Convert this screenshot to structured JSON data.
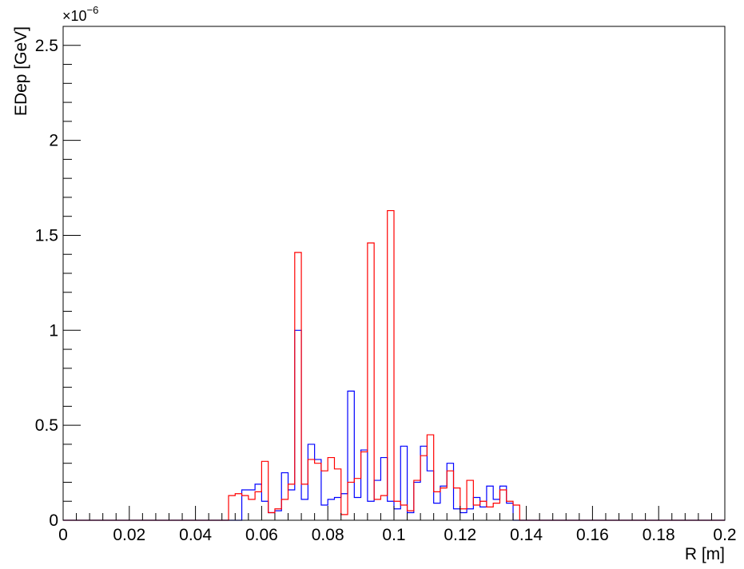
{
  "chart_data": {
    "type": "histogram",
    "xlabel": "R [m]",
    "ylabel": "EDep [GeV]",
    "y_multiplier": "×10",
    "y_multiplier_exp": "−6",
    "xlim": [
      0,
      0.2
    ],
    "ylim": [
      0,
      2.6
    ],
    "x_ticks": [
      0,
      0.02,
      0.04,
      0.06,
      0.08,
      0.1,
      0.12,
      0.14,
      0.16,
      0.18,
      0.2
    ],
    "x_tick_labels": [
      "0",
      "0.02",
      "0.04",
      "0.06",
      "0.08",
      "0.1",
      "0.12",
      "0.14",
      "0.16",
      "0.18",
      "0.2"
    ],
    "y_ticks": [
      0,
      0.5,
      1,
      1.5,
      2,
      2.5
    ],
    "y_tick_labels": [
      "0",
      "0.5",
      "1",
      "1.5",
      "2",
      "2.5"
    ],
    "bin_width": 0.002,
    "grid": false,
    "series": [
      {
        "color": "#0000ff",
        "values": [
          0,
          0,
          0,
          0,
          0,
          0,
          0,
          0,
          0,
          0,
          0,
          0,
          0,
          0,
          0,
          0,
          0,
          0,
          0,
          0,
          0,
          0,
          0,
          0,
          0,
          0,
          0,
          0.16,
          0.16,
          0.19,
          0.1,
          0.04,
          0.05,
          0.25,
          0.16,
          1.0,
          0.11,
          0.4,
          0.32,
          0.08,
          0.11,
          0.12,
          0.14,
          0.68,
          0.12,
          0.37,
          0.1,
          0.21,
          0.33,
          0.1,
          0.06,
          0.39,
          0.04,
          0.2,
          0.39,
          0.26,
          0.09,
          0.18,
          0.3,
          0.06,
          0.04,
          0.06,
          0.12,
          0.07,
          0.18,
          0.11,
          0.18,
          0.09,
          0,
          0,
          0,
          0,
          0,
          0,
          0,
          0,
          0,
          0,
          0,
          0,
          0,
          0,
          0,
          0,
          0,
          0,
          0,
          0,
          0,
          0,
          0,
          0,
          0,
          0,
          0,
          0,
          0,
          0,
          0,
          0
        ]
      },
      {
        "color": "#ff0000",
        "values": [
          0,
          0,
          0,
          0,
          0,
          0,
          0,
          0,
          0,
          0,
          0,
          0,
          0,
          0,
          0,
          0,
          0,
          0,
          0,
          0,
          0,
          0,
          0,
          0,
          0,
          0.13,
          0.14,
          0.13,
          0.11,
          0.15,
          0.31,
          0.04,
          0.06,
          0.11,
          0.19,
          1.41,
          0.19,
          0.32,
          0.3,
          0.26,
          0.33,
          0.27,
          0.03,
          0.2,
          0.22,
          0.36,
          1.46,
          0.11,
          0.13,
          1.63,
          0.1,
          0.08,
          0.05,
          0.21,
          0.34,
          0.45,
          0.15,
          0.17,
          0.26,
          0.17,
          0.06,
          0.21,
          0.08,
          0.1,
          0.07,
          0.09,
          0.16,
          0.1,
          0.08,
          0,
          0,
          0,
          0,
          0,
          0,
          0,
          0,
          0,
          0,
          0,
          0,
          0,
          0,
          0,
          0,
          0,
          0,
          0,
          0,
          0,
          0,
          0,
          0,
          0,
          0,
          0,
          0,
          0,
          0,
          0
        ]
      }
    ]
  }
}
